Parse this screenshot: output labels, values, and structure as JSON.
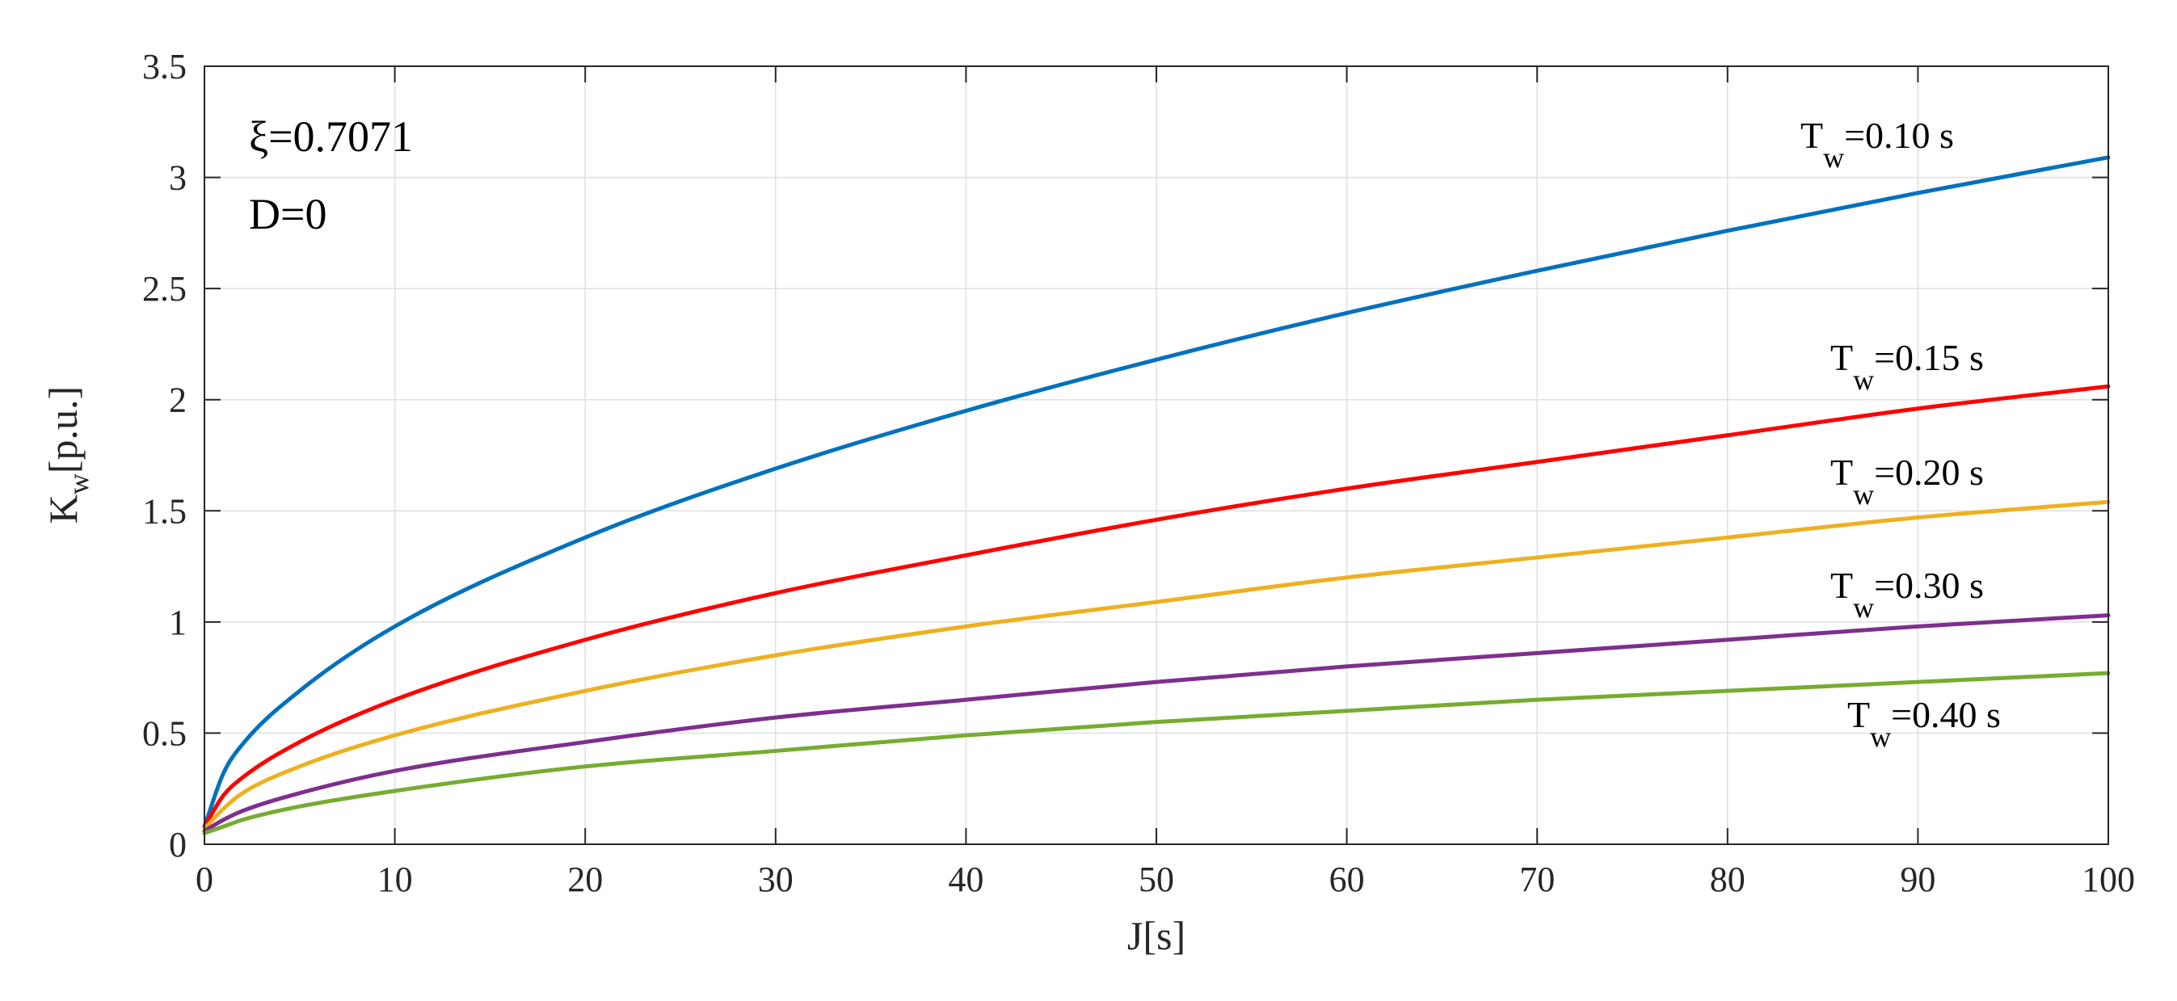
{
  "chart_data": {
    "type": "line",
    "title": "",
    "xlabel": "J[s]",
    "ylabel": {
      "main": "K",
      "sub": "w",
      "suffix": "[p.u.]"
    },
    "xlim": [
      0,
      100
    ],
    "ylim": [
      0,
      3.5
    ],
    "xticks": [
      0,
      10,
      20,
      30,
      40,
      50,
      60,
      70,
      80,
      90,
      100
    ],
    "yticks": [
      0,
      0.5,
      1,
      1.5,
      2,
      2.5,
      3,
      3.5
    ],
    "xtick_labels": [
      "0",
      "10",
      "20",
      "30",
      "40",
      "50",
      "60",
      "70",
      "80",
      "90",
      "100"
    ],
    "ytick_labels": [
      "0",
      "0.5",
      "1",
      "1.5",
      "2",
      "2.5",
      "3",
      "3.5"
    ],
    "grid": true,
    "annotations": [
      "ξ=0.7071",
      "D=0"
    ],
    "x": [
      0,
      1,
      2,
      5,
      10,
      20,
      30,
      40,
      50,
      60,
      70,
      80,
      90,
      100
    ],
    "series": [
      {
        "label_main": "T",
        "label_sub": "w",
        "label_suffix": "=0.10 s",
        "color": "#0072BD",
        "values": [
          0.08,
          0.32,
          0.45,
          0.69,
          0.98,
          1.38,
          1.69,
          1.95,
          2.18,
          2.39,
          2.58,
          2.76,
          2.93,
          3.09
        ]
      },
      {
        "label_main": "T",
        "label_sub": "w",
        "label_suffix": "=0.15 s",
        "color": "#FF0000",
        "values": [
          0.08,
          0.22,
          0.3,
          0.46,
          0.65,
          0.92,
          1.13,
          1.3,
          1.46,
          1.6,
          1.72,
          1.84,
          1.96,
          2.06
        ]
      },
      {
        "label_main": "T",
        "label_sub": "w",
        "label_suffix": "=0.20 s",
        "color": "#EDB120",
        "values": [
          0.07,
          0.16,
          0.23,
          0.35,
          0.49,
          0.69,
          0.85,
          0.98,
          1.09,
          1.2,
          1.29,
          1.38,
          1.47,
          1.54
        ]
      },
      {
        "label_main": "T",
        "label_sub": "w",
        "label_suffix": "=0.30 s",
        "color": "#7E2F8E",
        "values": [
          0.06,
          0.11,
          0.15,
          0.23,
          0.33,
          0.46,
          0.57,
          0.65,
          0.73,
          0.8,
          0.86,
          0.92,
          0.98,
          1.03
        ]
      },
      {
        "label_main": "T",
        "label_sub": "w",
        "label_suffix": "=0.40 s",
        "color": "#77AC30",
        "values": [
          0.05,
          0.08,
          0.11,
          0.17,
          0.24,
          0.35,
          0.42,
          0.49,
          0.55,
          0.6,
          0.65,
          0.69,
          0.73,
          0.77
        ]
      }
    ]
  }
}
